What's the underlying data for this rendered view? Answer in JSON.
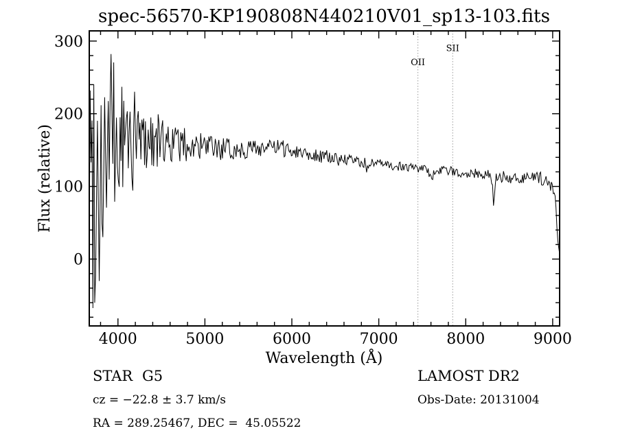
{
  "title": "spec-56570-KP190808N440210V01_sp13-103.fits",
  "chart_data": {
    "type": "line",
    "title": "spec-56570-KP190808N440210V01_sp13-103.fits",
    "xlabel": "Wavelength (Å)",
    "ylabel": "Flux (relative)",
    "xlim": [
      3670,
      9080
    ],
    "ylim": [
      -92,
      314
    ],
    "x_major_ticks": [
      4000,
      5000,
      6000,
      7000,
      8000,
      9000
    ],
    "x_minor_step": 200,
    "y_major_ticks": [
      0,
      100,
      200,
      300
    ],
    "y_minor_step": 20,
    "grid": false,
    "legend": "none",
    "line_color": "#000000",
    "line_markers": [
      {
        "label": "OII",
        "wavelength": 7450,
        "label_flux": 267,
        "color": "#999999"
      },
      {
        "label": "SII",
        "wavelength": 7850,
        "label_flux": 286,
        "color": "#999999"
      }
    ],
    "continuum": {
      "x": [
        3670,
        3750,
        3850,
        3950,
        4050,
        4200,
        4350,
        4500,
        4700,
        4900,
        5100,
        5300,
        5500,
        5700,
        5900,
        6100,
        6300,
        6500,
        6700,
        6900,
        7100,
        7300,
        7500,
        7700,
        7900,
        8100,
        8300,
        8500,
        8700,
        8850,
        8950,
        9010,
        9040,
        9065,
        9080
      ],
      "y": [
        115,
        125,
        138,
        148,
        158,
        164,
        166,
        162,
        158,
        155,
        152,
        150,
        152,
        154,
        152,
        148,
        143,
        138,
        135,
        132,
        129,
        127,
        124,
        122,
        120,
        118,
        115,
        112,
        110,
        112,
        105,
        95,
        70,
        15,
        10
      ]
    },
    "noise_envelope": {
      "x": [
        3670,
        3780,
        3900,
        4000,
        4120,
        4250,
        4400,
        4600,
        4900,
        5200,
        5600,
        6000,
        6500,
        7000,
        7500,
        8000,
        8400,
        8800,
        9080
      ],
      "amp": [
        190,
        185,
        140,
        110,
        80,
        58,
        40,
        28,
        20,
        16,
        13,
        11,
        9,
        7,
        6,
        7,
        8,
        9,
        7
      ]
    },
    "features": [
      {
        "x": 3935,
        "dy": 60,
        "width": 8
      },
      {
        "x": 6870,
        "dy": -10,
        "width": 12
      },
      {
        "x": 7600,
        "dy": -14,
        "width": 18
      },
      {
        "x": 8320,
        "dy": -38,
        "width": 10
      },
      {
        "x": 8620,
        "dy": -14,
        "width": 9
      }
    ],
    "seed": 99,
    "n_points": 520
  },
  "footer": {
    "object_type": "STAR",
    "subclass": "G5",
    "cz": "cz = −22.8 ± 3.7 km/s",
    "radec": "RA = 289.25467, DEC =  45.05522",
    "survey": "LAMOST DR2",
    "obs_date": "Obs-Date: 20131004"
  }
}
